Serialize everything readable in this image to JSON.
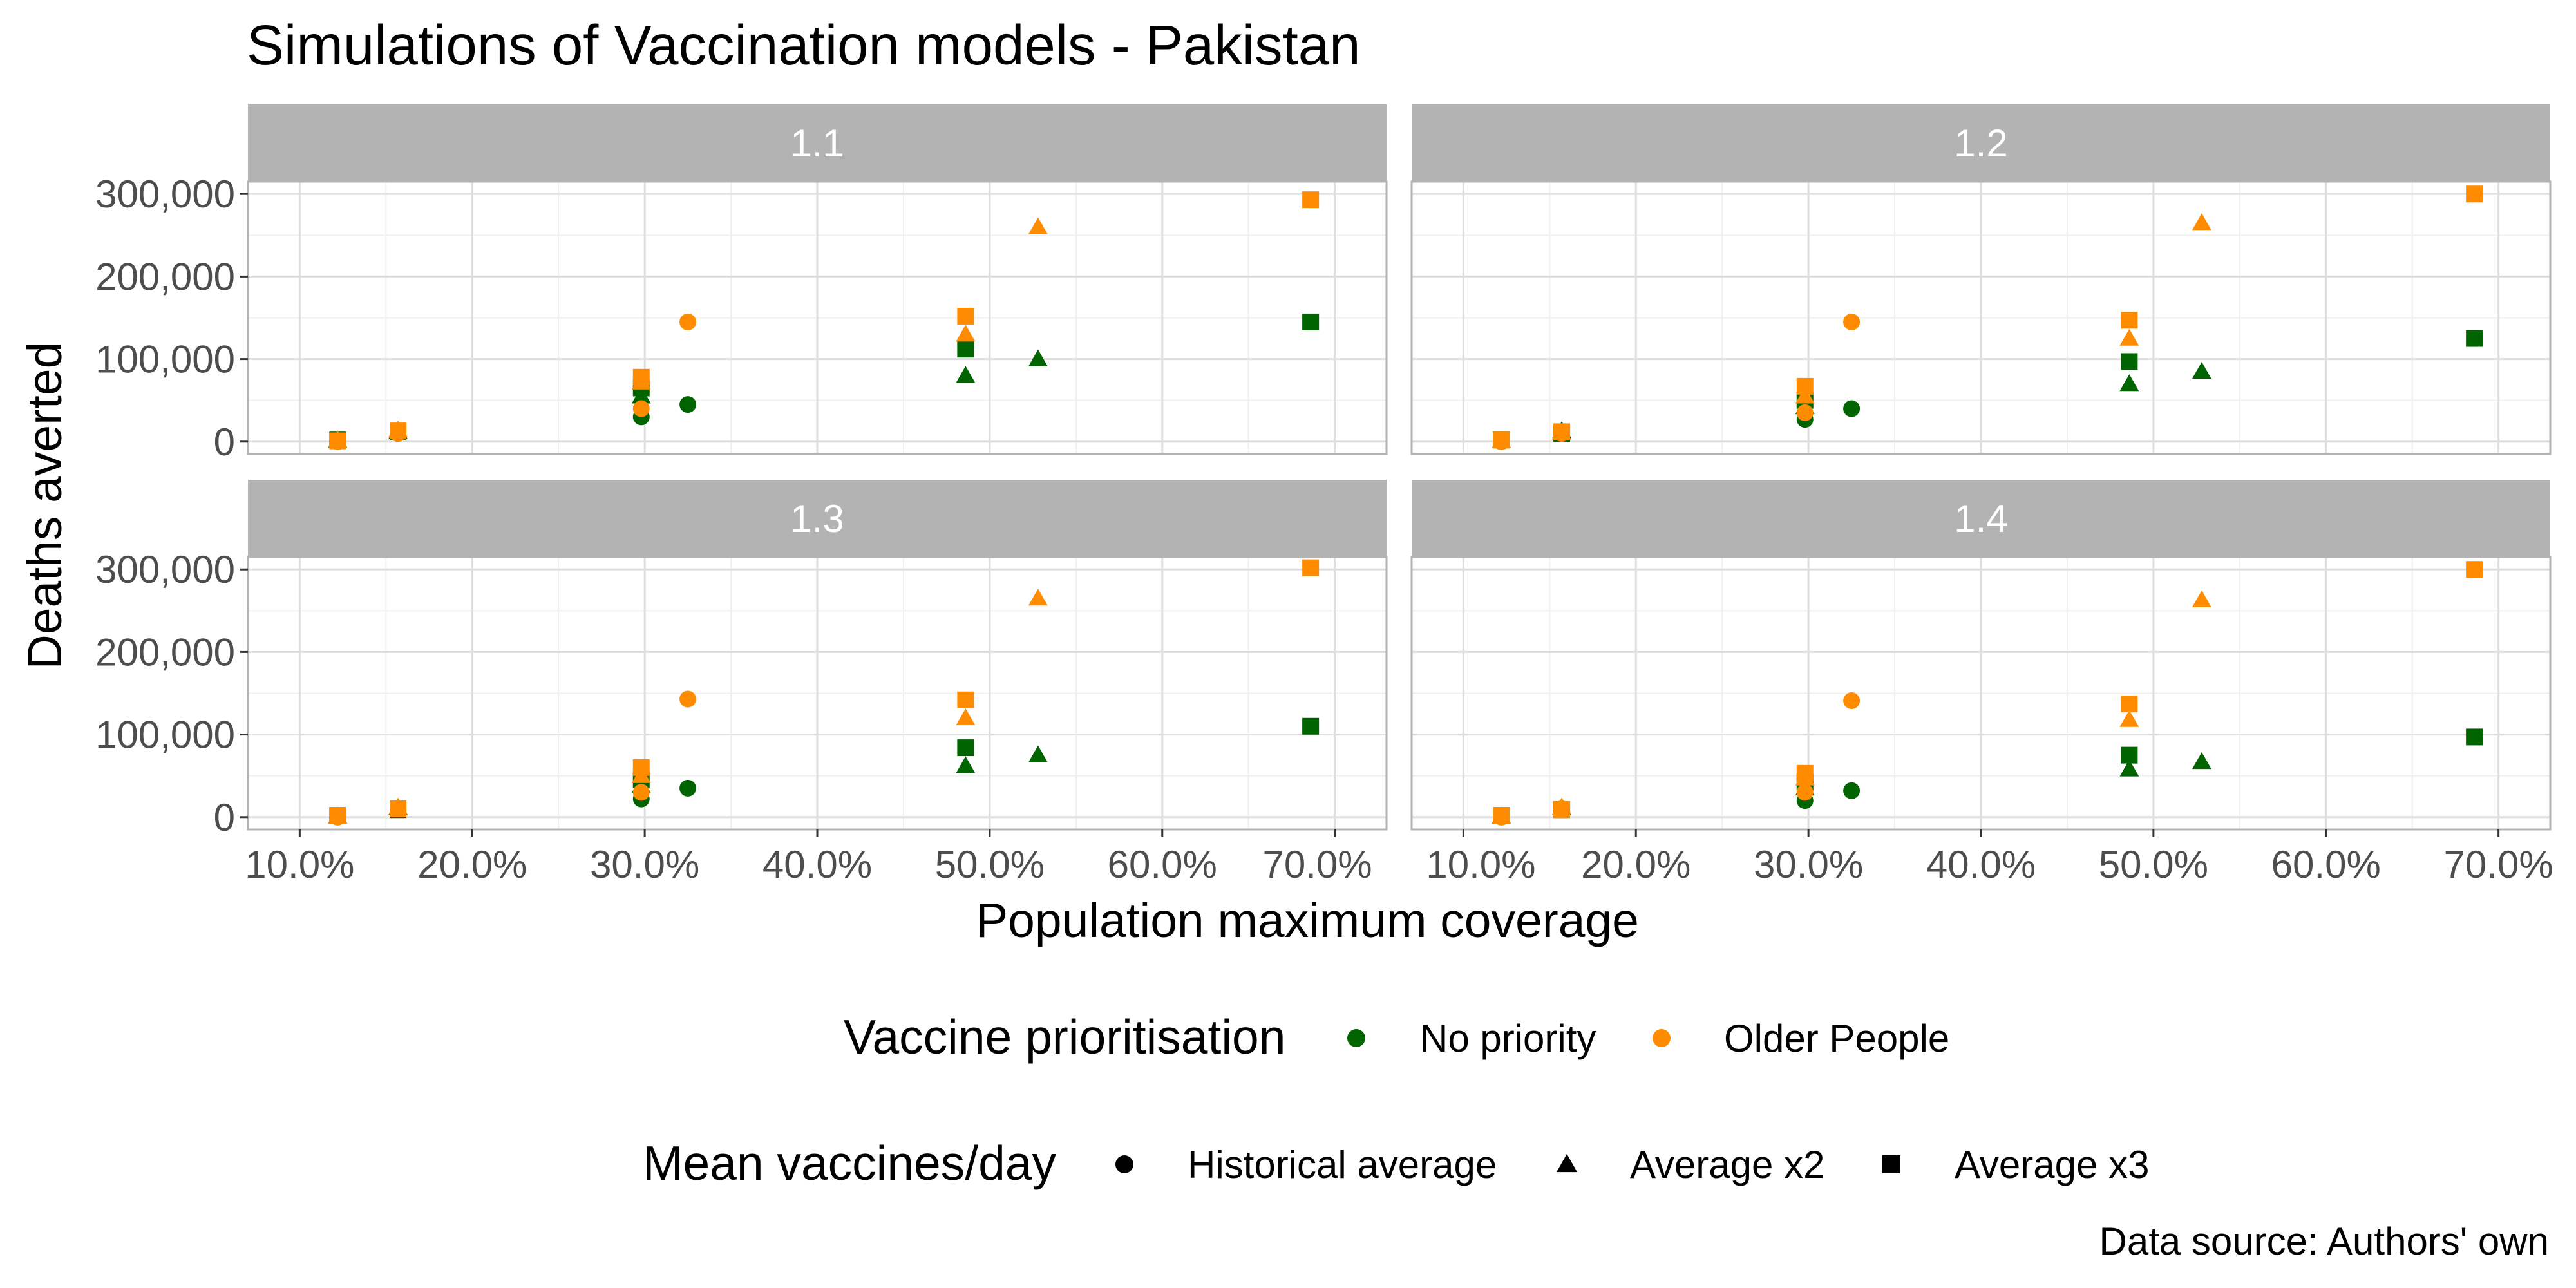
{
  "chart_data": {
    "type": "scatter",
    "title": "Simulations of Vaccination models - Pakistan",
    "xlabel": "Population maximum coverage",
    "ylabel": "Deaths averted",
    "caption": "Data source: Authors' own",
    "xlim": [
      0.1,
      0.7
    ],
    "ylim": [
      0,
      300000
    ],
    "x_ticks": [
      0.1,
      0.2,
      0.3,
      0.4,
      0.5,
      0.6,
      0.7
    ],
    "x_tick_labels": [
      "10.0%",
      "20.0%",
      "30.0%",
      "40.0%",
      "50.0%",
      "60.0%",
      "70.0%"
    ],
    "y_ticks": [
      0,
      100000,
      200000,
      300000
    ],
    "y_tick_labels": [
      "0",
      "100,000",
      "200,000",
      "300,000"
    ],
    "grid": true,
    "legend_position": "bottom",
    "legends": [
      {
        "title": "Vaccine prioritisation",
        "kind": "color",
        "entries": [
          {
            "label": "No priority",
            "color": "#006400"
          },
          {
            "label": "Older People",
            "color": "#ff8c00"
          }
        ]
      },
      {
        "title": "Mean vaccines/day",
        "kind": "shape",
        "entries": [
          {
            "label": "Historical average",
            "shape": "circle"
          },
          {
            "label": "Average x2",
            "shape": "triangle"
          },
          {
            "label": "Average x3",
            "shape": "square"
          }
        ]
      }
    ],
    "panels": [
      {
        "label": "1.1",
        "series": [
          {
            "priority": "No priority",
            "vaccines": "Historical average",
            "points": [
              {
                "x": 0.122,
                "y": 0
              },
              {
                "x": 0.157,
                "y": 10000
              },
              {
                "x": 0.298,
                "y": 30000
              },
              {
                "x": 0.325,
                "y": 45000
              }
            ]
          },
          {
            "priority": "No priority",
            "vaccines": "Average x2",
            "points": [
              {
                "x": 0.122,
                "y": 1000
              },
              {
                "x": 0.157,
                "y": 12000
              },
              {
                "x": 0.298,
                "y": 55000
              },
              {
                "x": 0.486,
                "y": 80000
              },
              {
                "x": 0.528,
                "y": 100000
              }
            ]
          },
          {
            "priority": "No priority",
            "vaccines": "Average x3",
            "points": [
              {
                "x": 0.122,
                "y": 2000
              },
              {
                "x": 0.157,
                "y": 12000
              },
              {
                "x": 0.298,
                "y": 65000
              },
              {
                "x": 0.486,
                "y": 112000
              },
              {
                "x": 0.686,
                "y": 145000
              }
            ]
          },
          {
            "priority": "Older People",
            "vaccines": "Historical average",
            "points": [
              {
                "x": 0.122,
                "y": 0
              },
              {
                "x": 0.157,
                "y": 10000
              },
              {
                "x": 0.298,
                "y": 40000
              },
              {
                "x": 0.325,
                "y": 145000
              }
            ]
          },
          {
            "priority": "Older People",
            "vaccines": "Average x2",
            "points": [
              {
                "x": 0.122,
                "y": 2000
              },
              {
                "x": 0.157,
                "y": 14000
              },
              {
                "x": 0.298,
                "y": 72000
              },
              {
                "x": 0.486,
                "y": 130000
              },
              {
                "x": 0.528,
                "y": 260000
              }
            ]
          },
          {
            "priority": "Older People",
            "vaccines": "Average x3",
            "points": [
              {
                "x": 0.122,
                "y": 1000
              },
              {
                "x": 0.157,
                "y": 13000
              },
              {
                "x": 0.298,
                "y": 78000
              },
              {
                "x": 0.486,
                "y": 152000
              },
              {
                "x": 0.686,
                "y": 293000
              }
            ]
          }
        ]
      },
      {
        "label": "1.2",
        "series": [
          {
            "priority": "No priority",
            "vaccines": "Historical average",
            "points": [
              {
                "x": 0.122,
                "y": 0
              },
              {
                "x": 0.157,
                "y": 10000
              },
              {
                "x": 0.298,
                "y": 27000
              },
              {
                "x": 0.325,
                "y": 40000
              }
            ]
          },
          {
            "priority": "No priority",
            "vaccines": "Average x2",
            "points": [
              {
                "x": 0.122,
                "y": 1000
              },
              {
                "x": 0.157,
                "y": 13000
              },
              {
                "x": 0.298,
                "y": 42000
              },
              {
                "x": 0.486,
                "y": 70000
              },
              {
                "x": 0.528,
                "y": 85000
              }
            ]
          },
          {
            "priority": "No priority",
            "vaccines": "Average x3",
            "points": [
              {
                "x": 0.122,
                "y": 2000
              },
              {
                "x": 0.157,
                "y": 10000
              },
              {
                "x": 0.298,
                "y": 50000
              },
              {
                "x": 0.486,
                "y": 97000
              },
              {
                "x": 0.686,
                "y": 125000
              }
            ]
          },
          {
            "priority": "Older People",
            "vaccines": "Historical average",
            "points": [
              {
                "x": 0.122,
                "y": 0
              },
              {
                "x": 0.157,
                "y": 10000
              },
              {
                "x": 0.298,
                "y": 35000
              },
              {
                "x": 0.325,
                "y": 145000
              }
            ]
          },
          {
            "priority": "Older People",
            "vaccines": "Average x2",
            "points": [
              {
                "x": 0.122,
                "y": 1000
              },
              {
                "x": 0.157,
                "y": 11000
              },
              {
                "x": 0.298,
                "y": 55000
              },
              {
                "x": 0.486,
                "y": 125000
              },
              {
                "x": 0.528,
                "y": 265000
              }
            ]
          },
          {
            "priority": "Older People",
            "vaccines": "Average x3",
            "points": [
              {
                "x": 0.122,
                "y": 2000
              },
              {
                "x": 0.157,
                "y": 12000
              },
              {
                "x": 0.298,
                "y": 67000
              },
              {
                "x": 0.486,
                "y": 147000
              },
              {
                "x": 0.686,
                "y": 300000
              }
            ]
          }
        ]
      },
      {
        "label": "1.3",
        "series": [
          {
            "priority": "No priority",
            "vaccines": "Historical average",
            "points": [
              {
                "x": 0.122,
                "y": 0
              },
              {
                "x": 0.157,
                "y": 10000
              },
              {
                "x": 0.298,
                "y": 22000
              },
              {
                "x": 0.325,
                "y": 35000
              }
            ]
          },
          {
            "priority": "No priority",
            "vaccines": "Average x2",
            "points": [
              {
                "x": 0.122,
                "y": 1000
              },
              {
                "x": 0.157,
                "y": 11000
              },
              {
                "x": 0.298,
                "y": 38000
              },
              {
                "x": 0.486,
                "y": 62000
              },
              {
                "x": 0.528,
                "y": 75000
              }
            ]
          },
          {
            "priority": "No priority",
            "vaccines": "Average x3",
            "points": [
              {
                "x": 0.122,
                "y": 2000
              },
              {
                "x": 0.157,
                "y": 9000
              },
              {
                "x": 0.298,
                "y": 45000
              },
              {
                "x": 0.486,
                "y": 84000
              },
              {
                "x": 0.686,
                "y": 110000
              }
            ]
          },
          {
            "priority": "Older People",
            "vaccines": "Historical average",
            "points": [
              {
                "x": 0.122,
                "y": 0
              },
              {
                "x": 0.157,
                "y": 10000
              },
              {
                "x": 0.298,
                "y": 30000
              },
              {
                "x": 0.325,
                "y": 143000
              }
            ]
          },
          {
            "priority": "Older People",
            "vaccines": "Average x2",
            "points": [
              {
                "x": 0.122,
                "y": 1000
              },
              {
                "x": 0.157,
                "y": 12000
              },
              {
                "x": 0.298,
                "y": 50000
              },
              {
                "x": 0.486,
                "y": 120000
              },
              {
                "x": 0.528,
                "y": 265000
              }
            ]
          },
          {
            "priority": "Older People",
            "vaccines": "Average x3",
            "points": [
              {
                "x": 0.122,
                "y": 2000
              },
              {
                "x": 0.157,
                "y": 10000
              },
              {
                "x": 0.298,
                "y": 60000
              },
              {
                "x": 0.486,
                "y": 142000
              },
              {
                "x": 0.686,
                "y": 302000
              }
            ]
          }
        ]
      },
      {
        "label": "1.4",
        "series": [
          {
            "priority": "No priority",
            "vaccines": "Historical average",
            "points": [
              {
                "x": 0.122,
                "y": 0
              },
              {
                "x": 0.157,
                "y": 10000
              },
              {
                "x": 0.298,
                "y": 20000
              },
              {
                "x": 0.325,
                "y": 32000
              }
            ]
          },
          {
            "priority": "No priority",
            "vaccines": "Average x2",
            "points": [
              {
                "x": 0.122,
                "y": 1000
              },
              {
                "x": 0.157,
                "y": 11000
              },
              {
                "x": 0.298,
                "y": 35000
              },
              {
                "x": 0.486,
                "y": 58000
              },
              {
                "x": 0.528,
                "y": 67000
              }
            ]
          },
          {
            "priority": "No priority",
            "vaccines": "Average x3",
            "points": [
              {
                "x": 0.122,
                "y": 2000
              },
              {
                "x": 0.157,
                "y": 9000
              },
              {
                "x": 0.298,
                "y": 42000
              },
              {
                "x": 0.486,
                "y": 75000
              },
              {
                "x": 0.686,
                "y": 97000
              }
            ]
          },
          {
            "priority": "Older People",
            "vaccines": "Historical average",
            "points": [
              {
                "x": 0.122,
                "y": 0
              },
              {
                "x": 0.157,
                "y": 10000
              },
              {
                "x": 0.298,
                "y": 30000
              },
              {
                "x": 0.325,
                "y": 141000
              }
            ]
          },
          {
            "priority": "Older People",
            "vaccines": "Average x2",
            "points": [
              {
                "x": 0.122,
                "y": 1000
              },
              {
                "x": 0.157,
                "y": 12000
              },
              {
                "x": 0.298,
                "y": 47000
              },
              {
                "x": 0.486,
                "y": 118000
              },
              {
                "x": 0.528,
                "y": 263000
              }
            ]
          },
          {
            "priority": "Older People",
            "vaccines": "Average x3",
            "points": [
              {
                "x": 0.122,
                "y": 2000
              },
              {
                "x": 0.157,
                "y": 9000
              },
              {
                "x": 0.298,
                "y": 53000
              },
              {
                "x": 0.486,
                "y": 137000
              },
              {
                "x": 0.686,
                "y": 300000
              }
            ]
          }
        ]
      }
    ]
  }
}
